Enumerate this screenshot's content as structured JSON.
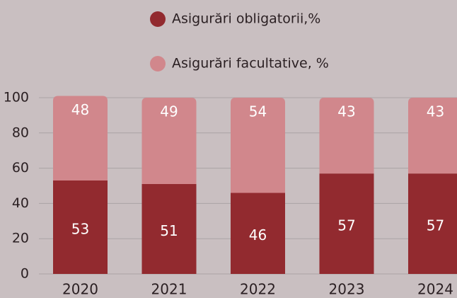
{
  "chart_data": {
    "type": "stacked_bar",
    "categories": [
      "2020",
      "2021",
      "2022",
      "2023",
      "2024"
    ],
    "series": [
      {
        "name": "Asigurări obligatorii,%",
        "color": "#922a2f",
        "values": [
          53,
          51,
          46,
          57,
          57
        ]
      },
      {
        "name": "Asigurări facultative, %",
        "color": "#d1878c",
        "values": [
          48,
          49,
          54,
          43,
          43
        ]
      }
    ],
    "ylim": [
      0,
      100
    ],
    "yticks": [
      0,
      20,
      40,
      60,
      80,
      100
    ],
    "grid": true
  }
}
